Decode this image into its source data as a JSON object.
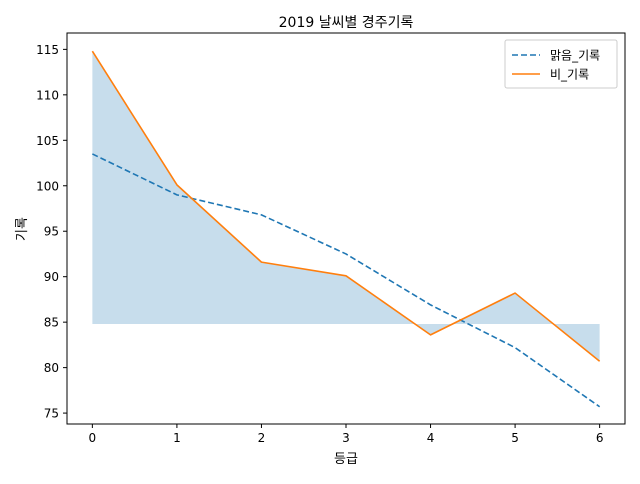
{
  "chart_data": {
    "type": "line",
    "title": "2019 날씨별 경주기록",
    "xlabel": "등급",
    "ylabel": "기록",
    "x": [
      0,
      1,
      2,
      3,
      4,
      5,
      6
    ],
    "xlim": [
      -0.3,
      6.3
    ],
    "ylim": [
      73.8,
      116.8
    ],
    "xticks": [
      0,
      1,
      2,
      3,
      4,
      5,
      6
    ],
    "yticks": [
      75,
      80,
      85,
      90,
      95,
      100,
      105,
      110,
      115
    ],
    "grid": false,
    "legend_position": "top-right",
    "series": [
      {
        "name": "맑음_기록",
        "values": [
          103.5,
          99.0,
          96.8,
          92.5,
          86.9,
          82.2,
          75.7
        ],
        "color": "#1f77b4",
        "linestyle": "dashed"
      },
      {
        "name": "비_기록",
        "values": [
          114.8,
          100.1,
          91.6,
          90.1,
          83.6,
          88.2,
          80.7
        ],
        "color": "#ff7f0e",
        "linestyle": "solid"
      }
    ],
    "fill_between": {
      "series": "비_기록",
      "baseline": 84.8,
      "color": "#1f77b4",
      "opacity": 0.25
    }
  }
}
